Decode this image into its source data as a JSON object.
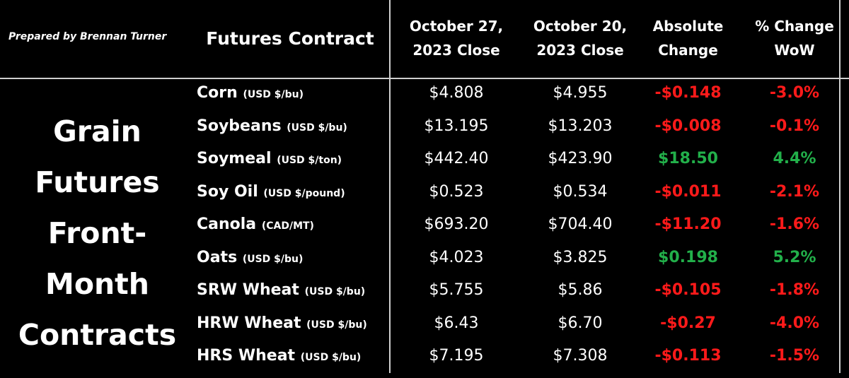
{
  "prepared_by": "Prepared by Brennan Turner",
  "title_lines": [
    "Grain",
    "Futures",
    "Front-",
    "Month",
    "Contracts"
  ],
  "headers": {
    "contract": "Futures Contract",
    "close_current": [
      "October 27,",
      "2023 Close"
    ],
    "close_prior": [
      "October 20,",
      "2023 Close"
    ],
    "abs_change": [
      "Absolute",
      "Change"
    ],
    "pct_change": [
      "% Change",
      "WoW"
    ]
  },
  "colors": {
    "negative": "#ff1a1a",
    "positive": "#22b04a"
  },
  "rows": [
    {
      "name": "Corn",
      "unit": "(USD $/bu)",
      "oct27": "$4.808",
      "oct20": "$4.955",
      "abs": "-$0.148",
      "pct": "-3.0%",
      "dir": "neg"
    },
    {
      "name": "Soybeans",
      "unit": "(USD $/bu)",
      "oct27": "$13.195",
      "oct20": "$13.203",
      "abs": "-$0.008",
      "pct": "-0.1%",
      "dir": "neg"
    },
    {
      "name": "Soymeal",
      "unit": "(USD $/ton)",
      "oct27": "$442.40",
      "oct20": "$423.90",
      "abs": "$18.50",
      "pct": "4.4%",
      "dir": "pos"
    },
    {
      "name": "Soy Oil",
      "unit": "(USD $/pound)",
      "oct27": "$0.523",
      "oct20": "$0.534",
      "abs": "-$0.011",
      "pct": "-2.1%",
      "dir": "neg"
    },
    {
      "name": "Canola",
      "unit": "(CAD/MT)",
      "oct27": "$693.20",
      "oct20": "$704.40",
      "abs": "-$11.20",
      "pct": "-1.6%",
      "dir": "neg"
    },
    {
      "name": "Oats",
      "unit": "(USD $/bu)",
      "oct27": "$4.023",
      "oct20": "$3.825",
      "abs": "$0.198",
      "pct": "5.2%",
      "dir": "pos"
    },
    {
      "name": "SRW Wheat",
      "unit": "(USD $/bu)",
      "oct27": "$5.755",
      "oct20": "$5.86",
      "abs": "-$0.105",
      "pct": "-1.8%",
      "dir": "neg"
    },
    {
      "name": "HRW Wheat",
      "unit": "(USD $/bu)",
      "oct27": "$6.43",
      "oct20": "$6.70",
      "abs": "-$0.27",
      "pct": "-4.0%",
      "dir": "neg"
    },
    {
      "name": "HRS Wheat",
      "unit": "(USD $/bu)",
      "oct27": "$7.195",
      "oct20": "$7.308",
      "abs": "-$0.113",
      "pct": "-1.5%",
      "dir": "neg"
    }
  ]
}
